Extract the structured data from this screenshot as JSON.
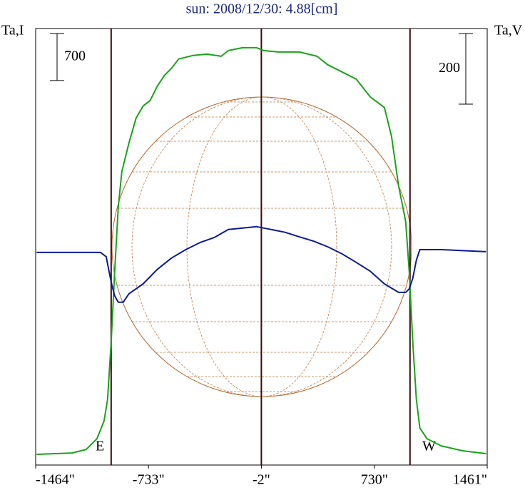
{
  "chart_data": {
    "type": "line",
    "title": "sun: 2008/12/30: 4.88[cm]",
    "y_label": "Ta,I",
    "y2_label": "Ta,V",
    "annotations": [
      "E",
      "W"
    ],
    "xlim": [
      -1464,
      1461
    ],
    "xticks": [
      {
        "value": -1464,
        "label": "-1464\""
      },
      {
        "value": -733,
        "label": "-733\""
      },
      {
        "value": -2,
        "label": "-2\""
      },
      {
        "value": 730,
        "label": "730\""
      },
      {
        "value": 1461,
        "label": "1461\""
      }
    ],
    "ylim": [
      0,
      6500
    ],
    "y2lim": [
      -600,
      636
    ],
    "scale_bars": [
      {
        "axis": "y",
        "value": 700
      },
      {
        "axis": "y2",
        "value": 200
      }
    ],
    "vlines": [
      -975,
      -2,
      961
    ],
    "series": [
      {
        "name": "Ta,I",
        "color": "#1aa31a",
        "axis": "y",
        "x": [
          -1458,
          -1228,
          -1136,
          -1067,
          -1021,
          -998,
          -975,
          -952,
          -929,
          -906,
          -860,
          -814,
          -768,
          -722,
          -676,
          -630,
          -584,
          -538,
          -446,
          -354,
          -262,
          -216,
          -124,
          -32,
          14,
          106,
          244,
          359,
          428,
          520,
          612,
          703,
          795,
          841,
          887,
          933,
          956,
          979,
          1002,
          1025,
          1071,
          1163,
          1301,
          1453
        ],
        "values": [
          159,
          180,
          233,
          392,
          657,
          976,
          1824,
          2884,
          3839,
          4369,
          4793,
          5164,
          5345,
          5430,
          5642,
          5801,
          5907,
          6045,
          6098,
          6119,
          6087,
          6172,
          6214,
          6214,
          6172,
          6151,
          6151,
          6087,
          5960,
          5854,
          5748,
          5483,
          5323,
          4899,
          4157,
          3627,
          2884,
          1824,
          976,
          551,
          392,
          286,
          212,
          170
        ]
      },
      {
        "name": "Ta,V",
        "color": "#0d1a94",
        "axis": "y2",
        "x": [
          -1458,
          -1044,
          -1007,
          -989,
          -970,
          -952,
          -929,
          -897,
          -860,
          -768,
          -676,
          -584,
          -492,
          -400,
          -308,
          -216,
          -124,
          -32,
          60,
          152,
          244,
          336,
          428,
          520,
          612,
          703,
          795,
          887,
          933,
          956,
          979,
          1002,
          1025,
          1163,
          1453
        ],
        "values": [
          2,
          2,
          -10,
          -51,
          -91,
          -121,
          -139,
          -139,
          -115,
          -87,
          -46,
          -14,
          10,
          30,
          44,
          67,
          71,
          75,
          67,
          59,
          46,
          34,
          18,
          -2,
          -26,
          -51,
          -87,
          -111,
          -111,
          -101,
          -71,
          -20,
          10,
          10,
          4
        ]
      }
    ]
  }
}
